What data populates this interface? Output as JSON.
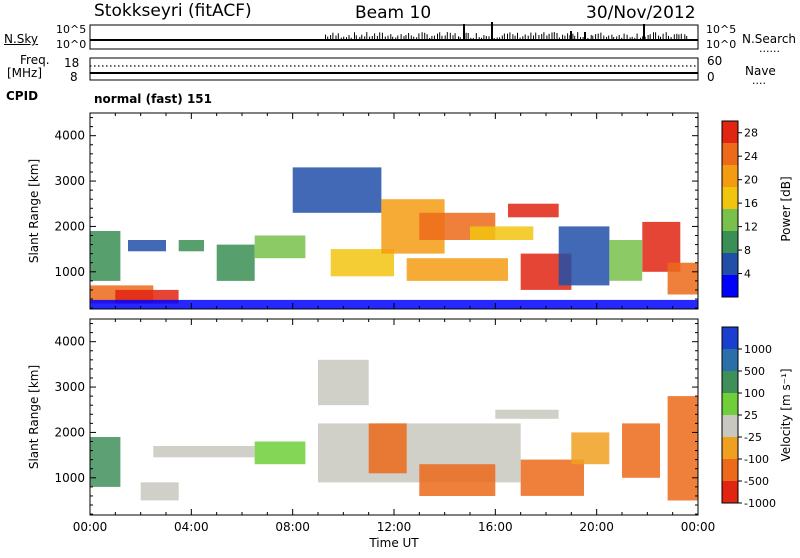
{
  "header": {
    "station": "Stokkseyri (fitACF)",
    "beam": "Beam 10",
    "date": "30/Nov/2012"
  },
  "side_labels": {
    "nsky": "N.Sky",
    "freq_line1": "Freq.",
    "freq_line2": "[MHz]",
    "cpid": "CPID",
    "nsearch": "N.Search",
    "nave": "Nave",
    "dotted_marker": "......",
    "dotted_marker_short": "...."
  },
  "noise_axis": {
    "left_ticks": [
      "10^5",
      "10^0"
    ],
    "right_ticks": [
      "10^5",
      "10^0"
    ]
  },
  "freq_axis": {
    "left_ticks": [
      "18",
      "8"
    ],
    "right_ticks": [
      "60",
      "0"
    ]
  },
  "cpid_text": "normal (fast) 151",
  "colors": {
    "power_scale": [
      "#0000ff",
      "#214fa8",
      "#3a8f55",
      "#78c14a",
      "#f1c40f",
      "#f39c12",
      "#ec6a1a",
      "#e02510"
    ],
    "velocity_scale": [
      "#1a3fcf",
      "#2a6fa8",
      "#3f8f5a",
      "#6fcf3a",
      "#c8c8c0",
      "#f0a020",
      "#ec6a1a",
      "#e02510"
    ],
    "ground_scatter": "#c8c8c0"
  },
  "chart_data": [
    {
      "type": "heatmap",
      "panel": "power",
      "ylabel": "Slant Range [km]",
      "ylim": [
        180,
        4500
      ],
      "y_ticks": [
        "1000",
        "2000",
        "3000",
        "4000"
      ],
      "xlim_hours": [
        0,
        24
      ],
      "x_ticks": [
        "00:00",
        "04:00",
        "08:00",
        "12:00",
        "16:00",
        "20:00",
        "00:00"
      ],
      "colorbar": {
        "label": "Power [dB]",
        "ticks": [
          "4",
          "8",
          "12",
          "16",
          "20",
          "24",
          "28"
        ],
        "range": [
          0,
          30
        ]
      },
      "regions": [
        {
          "t0": 0.0,
          "t1": 1.2,
          "r0": 800,
          "r1": 1900,
          "level": 2
        },
        {
          "t0": 0.0,
          "t1": 2.5,
          "r0": 300,
          "r1": 700,
          "level": 6
        },
        {
          "t0": 1.0,
          "t1": 3.5,
          "r0": 300,
          "r1": 600,
          "level": 7
        },
        {
          "t0": 1.5,
          "t1": 3.0,
          "r0": 1450,
          "r1": 1700,
          "level": 1
        },
        {
          "t0": 3.5,
          "t1": 4.5,
          "r0": 1450,
          "r1": 1700,
          "level": 2
        },
        {
          "t0": 5.0,
          "t1": 6.5,
          "r0": 800,
          "r1": 1600,
          "level": 2
        },
        {
          "t0": 6.5,
          "t1": 8.5,
          "r0": 1300,
          "r1": 1800,
          "level": 3
        },
        {
          "t0": 8.0,
          "t1": 11.5,
          "r0": 2300,
          "r1": 3300,
          "level": 1
        },
        {
          "t0": 9.5,
          "t1": 12.0,
          "r0": 900,
          "r1": 1500,
          "level": 4
        },
        {
          "t0": 11.5,
          "t1": 14.0,
          "r0": 1400,
          "r1": 2600,
          "level": 5
        },
        {
          "t0": 12.5,
          "t1": 16.5,
          "r0": 800,
          "r1": 1300,
          "level": 5
        },
        {
          "t0": 13.0,
          "t1": 16.0,
          "r0": 1700,
          "r1": 2300,
          "level": 6
        },
        {
          "t0": 15.0,
          "t1": 17.5,
          "r0": 1700,
          "r1": 2000,
          "level": 4
        },
        {
          "t0": 16.5,
          "t1": 18.5,
          "r0": 2200,
          "r1": 2500,
          "level": 7
        },
        {
          "t0": 17.0,
          "t1": 19.0,
          "r0": 600,
          "r1": 1400,
          "level": 7
        },
        {
          "t0": 18.5,
          "t1": 20.5,
          "r0": 700,
          "r1": 2000,
          "level": 1
        },
        {
          "t0": 20.5,
          "t1": 21.8,
          "r0": 800,
          "r1": 1700,
          "level": 3
        },
        {
          "t0": 21.8,
          "t1": 23.3,
          "r0": 1000,
          "r1": 2100,
          "level": 7
        },
        {
          "t0": 22.8,
          "t1": 24.0,
          "r0": 500,
          "r1": 1200,
          "level": 6
        },
        {
          "t0": 0.0,
          "t1": 24.0,
          "r0": 180,
          "r1": 380,
          "level": 0
        }
      ]
    },
    {
      "type": "heatmap",
      "panel": "velocity",
      "ylabel": "Slant Range [km]",
      "ylim": [
        180,
        4500
      ],
      "y_ticks": [
        "1000",
        "2000",
        "3000",
        "4000"
      ],
      "xlim_hours": [
        0,
        24
      ],
      "x_ticks": [
        "00:00",
        "04:00",
        "08:00",
        "12:00",
        "16:00",
        "20:00",
        "00:00"
      ],
      "xlabel": "Time UT",
      "colorbar": {
        "label": "Velocity [m s⁻¹]",
        "ticks": [
          "1000",
          "500",
          "100",
          "25",
          "-25",
          "-100",
          "-500",
          "-1000"
        ]
      },
      "regions": [
        {
          "t0": 0.0,
          "t1": 1.2,
          "r0": 800,
          "r1": 1900,
          "level": 2
        },
        {
          "t0": 2.0,
          "t1": 3.5,
          "r0": 500,
          "r1": 900,
          "level": 4
        },
        {
          "t0": 2.5,
          "t1": 4.5,
          "r0": 1450,
          "r1": 1700,
          "level": 4
        },
        {
          "t0": 4.5,
          "t1": 6.5,
          "r0": 1450,
          "r1": 1700,
          "level": 4
        },
        {
          "t0": 6.5,
          "t1": 8.5,
          "r0": 1300,
          "r1": 1800,
          "level": 3
        },
        {
          "t0": 9.0,
          "t1": 11.0,
          "r0": 2600,
          "r1": 3600,
          "level": 4
        },
        {
          "t0": 9.0,
          "t1": 17.0,
          "r0": 900,
          "r1": 2200,
          "level": 4
        },
        {
          "t0": 11.0,
          "t1": 12.5,
          "r0": 1100,
          "r1": 2200,
          "level": 6
        },
        {
          "t0": 13.0,
          "t1": 16.0,
          "r0": 600,
          "r1": 1300,
          "level": 6
        },
        {
          "t0": 16.0,
          "t1": 18.5,
          "r0": 2300,
          "r1": 2500,
          "level": 4
        },
        {
          "t0": 17.0,
          "t1": 19.5,
          "r0": 600,
          "r1": 1400,
          "level": 6
        },
        {
          "t0": 19.0,
          "t1": 20.5,
          "r0": 1300,
          "r1": 2000,
          "level": 5
        },
        {
          "t0": 21.0,
          "t1": 22.5,
          "r0": 1000,
          "r1": 2200,
          "level": 6
        },
        {
          "t0": 22.8,
          "t1": 24.0,
          "r0": 500,
          "r1": 2800,
          "level": 6
        }
      ]
    }
  ]
}
